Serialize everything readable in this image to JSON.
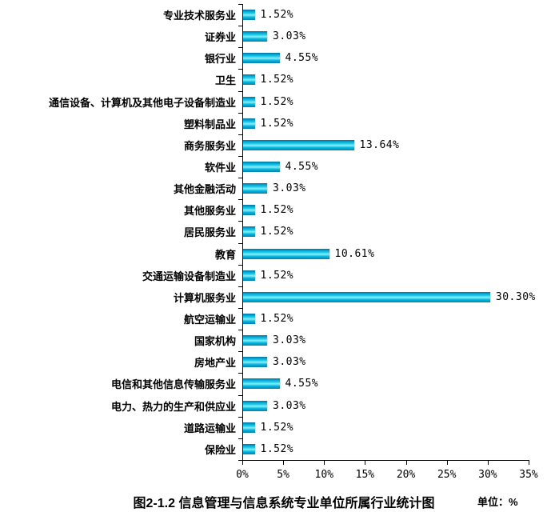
{
  "page": {
    "background_color": "#ffffff",
    "axis_color": "#000000",
    "text_color": "#000000"
  },
  "chart_data": {
    "type": "bar",
    "orientation": "horizontal",
    "title": "图2-1.2 信息管理与信息系统专业单位所属行业统计图",
    "unit_note": "单位：%",
    "categories": [
      "专业技术服务业",
      "证券业",
      "银行业",
      "卫生",
      "通信设备、计算机及其他电子设备制造业",
      "塑料制品业",
      "商务服务业",
      "软件业",
      "其他金融活动",
      "其他服务业",
      "居民服务业",
      "教育",
      "交通运输设备制造业",
      "计算机服务业",
      "航空运输业",
      "国家机构",
      "房地产业",
      "电信和其他信息传输服务业",
      "电力、热力的生产和供应业",
      "道路运输业",
      "保险业"
    ],
    "values": [
      1.52,
      3.03,
      4.55,
      1.52,
      1.52,
      1.52,
      13.64,
      4.55,
      3.03,
      1.52,
      1.52,
      10.61,
      1.52,
      30.3,
      1.52,
      3.03,
      3.03,
      4.55,
      3.03,
      1.52,
      1.52
    ],
    "value_labels": [
      "1.52%",
      "3.03%",
      "4.55%",
      "1.52%",
      "1.52%",
      "1.52%",
      "13.64%",
      "4.55%",
      "3.03%",
      "1.52%",
      "1.52%",
      "10.61%",
      "1.52%",
      "30.30%",
      "1.52%",
      "3.03%",
      "3.03%",
      "4.55%",
      "3.03%",
      "1.52%",
      "1.52%"
    ],
    "x_ticks": [
      "0%",
      "5%",
      "10%",
      "15%",
      "20%",
      "25%",
      "30%",
      "35%"
    ],
    "xlim": [
      0,
      35
    ],
    "grid": false,
    "legend": false,
    "bar_gradient": [
      "#0a6f9f 0%",
      "#00a9d4 18%",
      "#2ed2ef 38%",
      "#8ceefb 52%",
      "#00b7de 74%",
      "#077fae 100%"
    ]
  }
}
